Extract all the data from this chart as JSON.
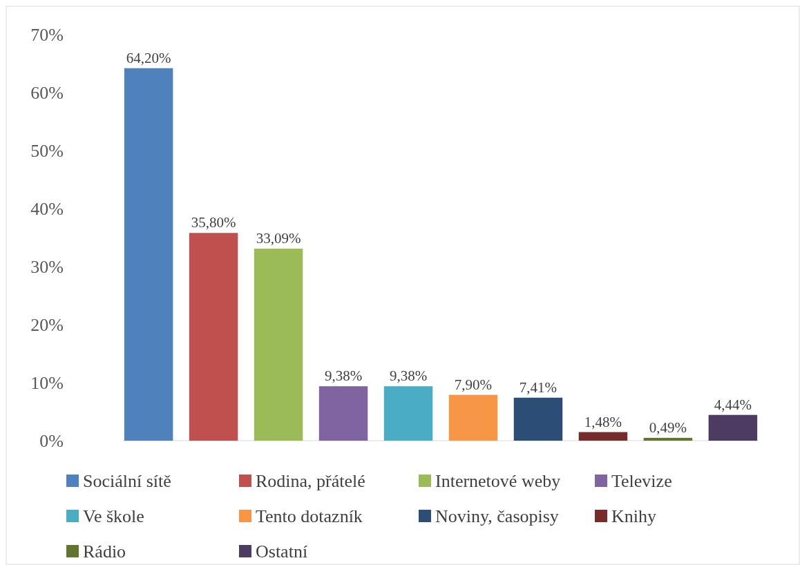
{
  "chart_data": {
    "type": "bar",
    "categories": [
      null
    ],
    "ylim": [
      0,
      70
    ],
    "yticks": [
      {
        "value": 0,
        "label": "0%"
      },
      {
        "value": 10,
        "label": "10%"
      },
      {
        "value": 20,
        "label": "20%"
      },
      {
        "value": 30,
        "label": "30%"
      },
      {
        "value": 40,
        "label": "40%"
      },
      {
        "value": 50,
        "label": "50%"
      },
      {
        "value": 60,
        "label": "60%"
      },
      {
        "value": 70,
        "label": "70%"
      }
    ],
    "grid": false,
    "legend": "bottom",
    "series": [
      {
        "name": "Sociální sítě",
        "color": "#4f81bd",
        "values": [
          64.2
        ],
        "value_labels": [
          "64,20%"
        ]
      },
      {
        "name": "Rodina, přátelé",
        "color": "#c0504d",
        "values": [
          35.8
        ],
        "value_labels": [
          "35,80%"
        ]
      },
      {
        "name": "Internetové weby",
        "color": "#9bbb59",
        "values": [
          33.09
        ],
        "value_labels": [
          "33,09%"
        ]
      },
      {
        "name": "Televize",
        "color": "#8064a2",
        "values": [
          9.38
        ],
        "value_labels": [
          "9,38%"
        ]
      },
      {
        "name": "Ve škole",
        "color": "#4bacc6",
        "values": [
          9.38
        ],
        "value_labels": [
          "9,38%"
        ]
      },
      {
        "name": "Tento dotazník",
        "color": "#f79646",
        "values": [
          7.9
        ],
        "value_labels": [
          "7,90%"
        ]
      },
      {
        "name": "Noviny, časopisy",
        "color": "#2c4d75",
        "values": [
          7.41
        ],
        "value_labels": [
          "7,41%"
        ]
      },
      {
        "name": "Knihy",
        "color": "#772c2a",
        "values": [
          1.48
        ],
        "value_labels": [
          "1,48%"
        ]
      },
      {
        "name": "Rádio",
        "color": "#5f7530",
        "values": [
          0.49
        ],
        "value_labels": [
          "0,49%"
        ]
      },
      {
        "name": "Ostatní",
        "color": "#4d3b62",
        "values": [
          4.44
        ],
        "value_labels": [
          "4,44%"
        ]
      }
    ]
  }
}
